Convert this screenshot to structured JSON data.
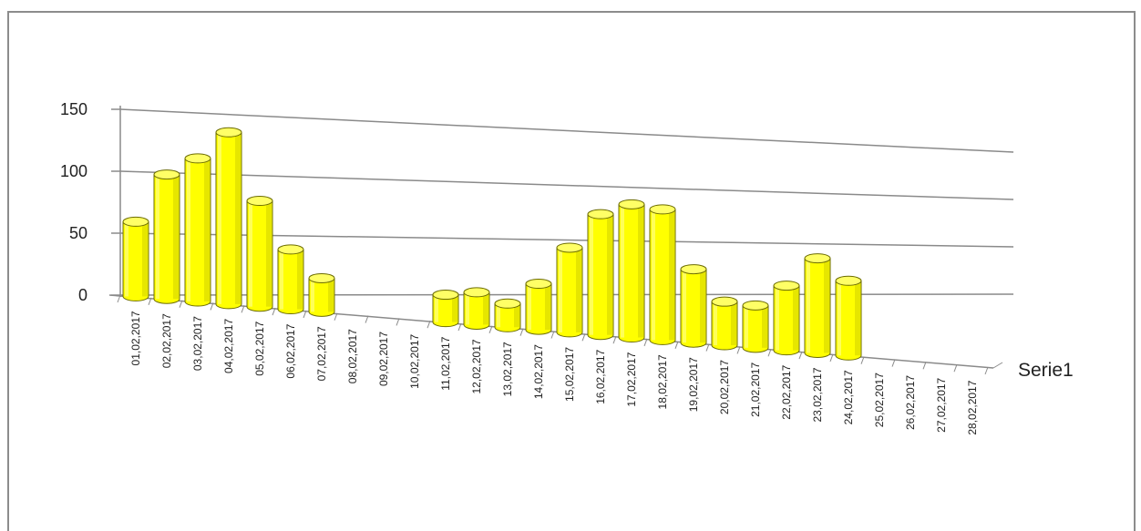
{
  "chart_data": {
    "type": "bar",
    "style": "3d-cylinder",
    "categories": [
      "01,02,2017",
      "02,02,2017",
      "03,02,2017",
      "04,02,2017",
      "05,02,2017",
      "06,02,2017",
      "07,02,2017",
      "08,02,2017",
      "09,02,2017",
      "10,02,2017",
      "11,02,2017",
      "12,02,2017",
      "13,02,2017",
      "14,02,2017",
      "15,02,2017",
      "16,02,2017",
      "17,02,2017",
      "18,02,2017",
      "19,02,2017",
      "20,02,2017",
      "21,02,2017",
      "22,02,2017",
      "23,02,2017",
      "24,02,2017",
      "25,02,2017",
      "26,02,2017",
      "27,02,2017",
      "28,02,2017"
    ],
    "series": [
      {
        "name": "Serie1",
        "values": [
          60,
          100,
          115,
          138,
          85,
          48,
          27,
          null,
          null,
          null,
          22,
          26,
          19,
          37,
          68,
          97,
          107,
          105,
          59,
          35,
          34,
          52,
          76,
          60,
          null,
          null,
          null,
          null
        ]
      }
    ],
    "yticks": [
      "0",
      "50",
      "100",
      "150"
    ],
    "ylim": [
      0,
      150
    ],
    "grid": true,
    "bar_color": "#ffff00",
    "bar_edge_color": "#6b6b00"
  }
}
